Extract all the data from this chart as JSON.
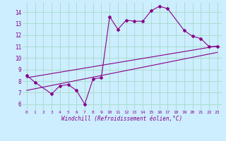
{
  "background_color": "#cceeff",
  "grid_color": "#aaddcc",
  "line_color": "#880088",
  "xlabel": "Windchill (Refroidissement éolien,°C)",
  "xlim": [
    -0.5,
    23.5
  ],
  "ylim": [
    5.5,
    14.8
  ],
  "xticks": [
    0,
    1,
    2,
    3,
    4,
    5,
    6,
    7,
    8,
    9,
    10,
    11,
    12,
    13,
    14,
    15,
    16,
    17,
    18,
    19,
    20,
    21,
    22,
    23
  ],
  "yticks": [
    6,
    7,
    8,
    9,
    10,
    11,
    12,
    13,
    14
  ],
  "data_x": [
    0,
    1,
    3,
    4,
    5,
    6,
    7,
    8,
    9,
    10,
    11,
    12,
    13,
    14,
    15,
    16,
    17,
    19,
    20,
    21,
    22,
    23
  ],
  "data_y": [
    8.5,
    7.9,
    6.9,
    7.6,
    7.7,
    7.2,
    6.0,
    8.2,
    8.3,
    13.6,
    12.5,
    13.3,
    13.2,
    13.2,
    14.1,
    14.5,
    14.3,
    12.4,
    11.9,
    11.7,
    11.0,
    11.0
  ],
  "line1_x": [
    0,
    23
  ],
  "line1_y": [
    8.3,
    11.05
  ],
  "line2_x": [
    0,
    23
  ],
  "line2_y": [
    7.2,
    10.5
  ]
}
